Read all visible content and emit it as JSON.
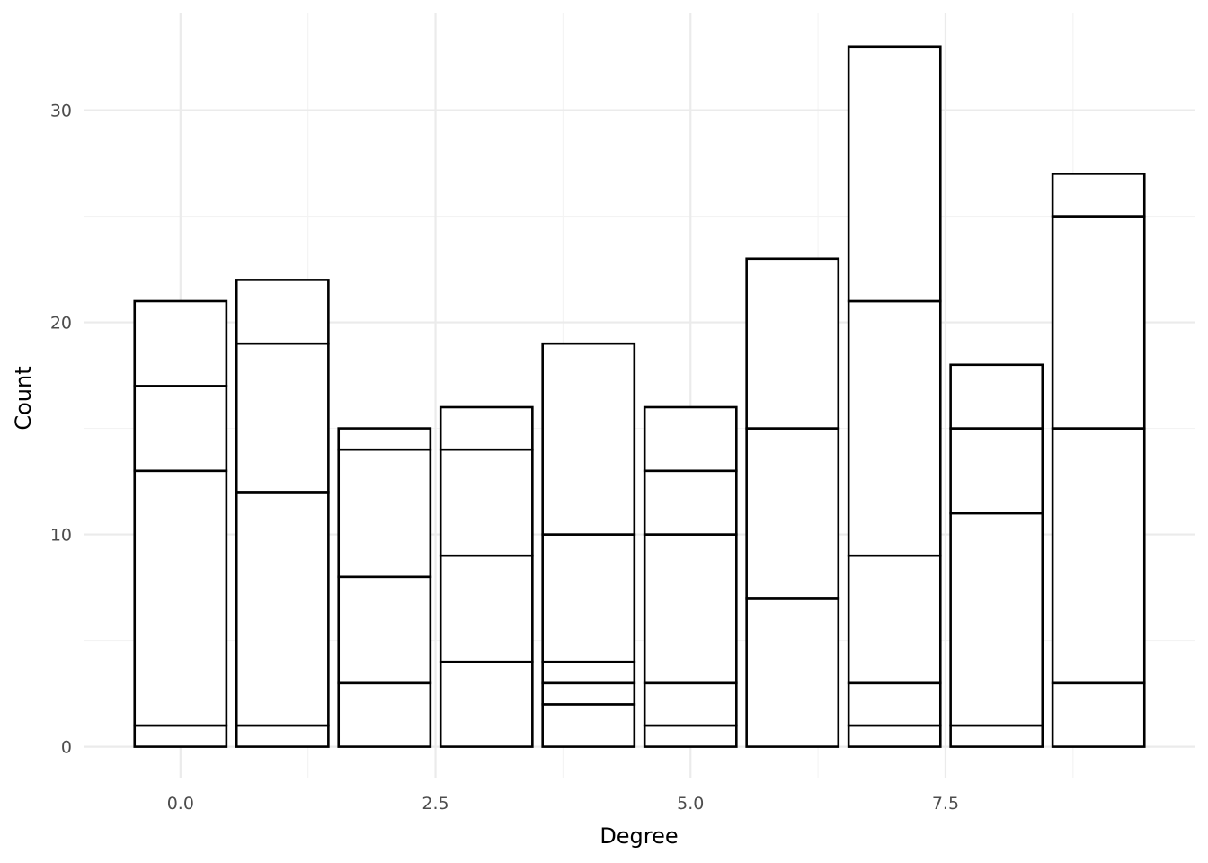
{
  "chart_data": {
    "type": "bar",
    "stacked": true,
    "title": "",
    "xlabel": "Degree",
    "ylabel": "Count",
    "x": [
      0,
      1,
      2,
      3,
      4,
      5,
      6,
      7,
      8,
      9
    ],
    "stacks": [
      [
        1,
        12,
        4,
        4
      ],
      [
        1,
        11,
        7,
        3
      ],
      [
        3,
        5,
        6,
        1
      ],
      [
        4,
        5,
        5,
        2
      ],
      [
        2,
        1,
        1,
        6,
        9
      ],
      [
        1,
        2,
        7,
        3,
        3
      ],
      [
        7,
        8,
        8
      ],
      [
        1,
        2,
        6,
        12,
        12
      ],
      [
        1,
        10,
        4,
        3
      ],
      [
        3,
        12,
        10,
        2
      ]
    ],
    "totals": [
      21,
      22,
      15,
      16,
      19,
      16,
      23,
      33,
      18,
      27
    ],
    "xlim": [
      -0.95,
      9.95
    ],
    "ylim": [
      -1.5,
      34.6
    ],
    "x_ticks": [
      0,
      2.5,
      5,
      7.5
    ],
    "x_tick_labels": [
      "0.0",
      "2.5",
      "5.0",
      "7.5"
    ],
    "y_ticks": [
      0,
      10,
      20,
      30
    ],
    "y_tick_labels": [
      "0",
      "10",
      "20",
      "30"
    ],
    "grid": true,
    "fill_color": "#ffffff",
    "stroke_color": "#000000"
  }
}
